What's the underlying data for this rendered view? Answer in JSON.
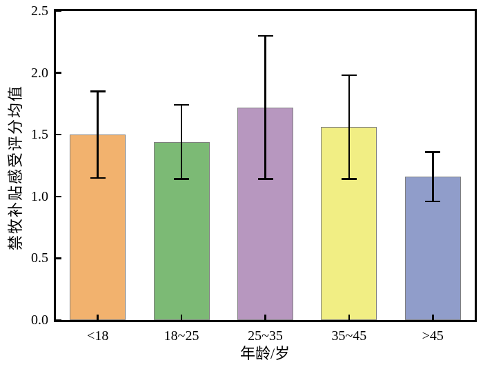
{
  "figure": {
    "background": "#ffffff",
    "frame_color": "#000000"
  },
  "chart_data": {
    "type": "bar",
    "title": "",
    "xlabel": "年龄/岁",
    "ylabel": "禁牧补贴感受评分均值",
    "categories": [
      "<18",
      "18~25",
      "25~35",
      "35~45",
      ">45"
    ],
    "values": [
      1.5,
      1.44,
      1.72,
      1.56,
      1.16
    ],
    "errors": [
      0.35,
      0.3,
      0.58,
      0.42,
      0.2
    ],
    "bar_colors": [
      "#F2B26E",
      "#7CBA75",
      "#B797BF",
      "#F1EE84",
      "#909DCA"
    ],
    "bar_edge_color": "#7f7f7f",
    "error_bar_color": "#000000",
    "ylim": [
      0.0,
      2.5
    ],
    "yticks": [
      "0.0",
      "0.5",
      "1.0",
      "1.5",
      "2.0",
      "2.5"
    ],
    "grid": false,
    "legend": null,
    "tick_direction": "in"
  }
}
